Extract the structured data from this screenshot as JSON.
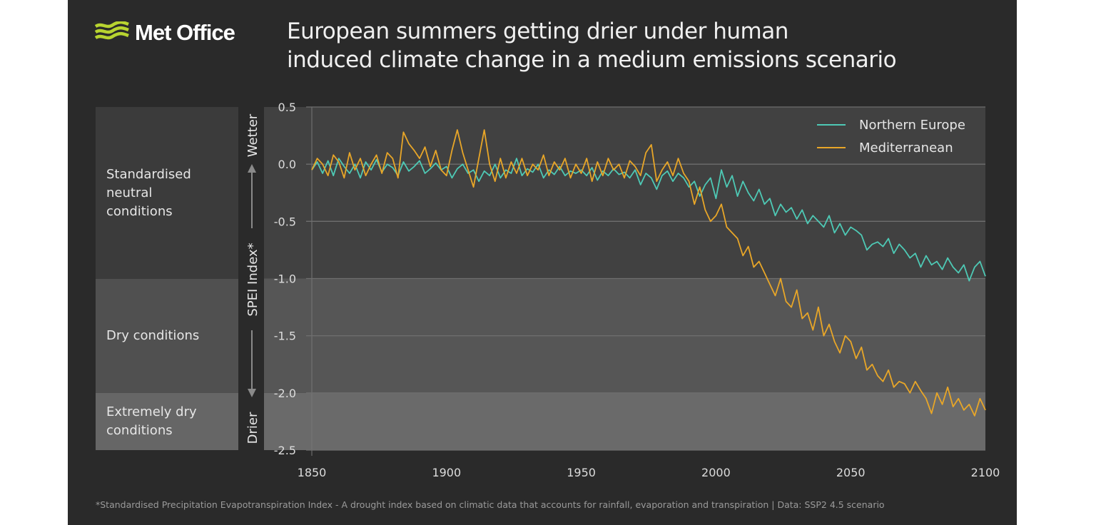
{
  "header": {
    "logo_text": "Met Office",
    "title_line1": "European summers getting drier under human",
    "title_line2": "induced climate change in a medium emissions scenario"
  },
  "bands": [
    {
      "label": "Standardised neutral conditions",
      "from": -1.0,
      "to": 0.5,
      "color": "#3b3b3b",
      "plot_color": "#414141"
    },
    {
      "label": "Dry conditions",
      "from": -2.0,
      "to": -1.0,
      "color": "#505050",
      "plot_color": "#565656"
    },
    {
      "label": "Extremely dry conditions",
      "from": -2.5,
      "to": -2.0,
      "color": "#666666",
      "plot_color": "#6a6a6a"
    }
  ],
  "axis_annotations": {
    "wetter": "Wetter",
    "drier": "Drier",
    "ylabel": "SPEI Index*"
  },
  "footnote": "*Standardised Precipitation Evapotranspiration Index - A drought index based on climatic data that accounts for rainfall, evaporation and transpiration  |  Data: SSP2 4.5 scenario",
  "chart_data": {
    "type": "line",
    "title": "European summers getting drier under human induced climate change in a medium emissions scenario",
    "xlabel": "",
    "ylabel": "SPEI Index*",
    "xlim": [
      1850,
      2100
    ],
    "ylim": [
      -2.5,
      0.5
    ],
    "xticks": [
      "1850",
      "1900",
      "1950",
      "2000",
      "2050",
      "2100"
    ],
    "yticks": [
      "0.5",
      "0.0",
      "-0.5",
      "-1.0",
      "-1.5",
      "-2.0",
      "-2.5"
    ],
    "grid": "horizontal",
    "legend": "top-right",
    "x_start": 1850,
    "x_step": 2,
    "series": [
      {
        "name": "Northern Europe",
        "color": "#4ec9b5",
        "values": [
          -0.05,
          0.02,
          -0.08,
          0.03,
          -0.1,
          0.05,
          -0.02,
          -0.08,
          0.0,
          -0.12,
          0.02,
          -0.05,
          0.04,
          -0.07,
          0.0,
          -0.03,
          -0.1,
          0.02,
          -0.06,
          -0.02,
          0.03,
          -0.08,
          -0.04,
          0.01,
          -0.05,
          -0.02,
          -0.12,
          -0.04,
          0.0,
          -0.08,
          -0.05,
          -0.15,
          -0.06,
          -0.1,
          0.0,
          -0.12,
          -0.05,
          -0.08,
          0.05,
          -0.1,
          -0.04,
          -0.07,
          0.0,
          -0.12,
          -0.05,
          -0.09,
          -0.02,
          -0.1,
          -0.06,
          -0.08,
          -0.05,
          -0.1,
          -0.03,
          -0.14,
          -0.06,
          -0.1,
          -0.04,
          -0.09,
          -0.07,
          -0.12,
          -0.05,
          -0.18,
          -0.08,
          -0.12,
          -0.22,
          -0.1,
          -0.06,
          -0.15,
          -0.08,
          -0.12,
          -0.2,
          -0.15,
          -0.28,
          -0.18,
          -0.12,
          -0.3,
          -0.05,
          -0.2,
          -0.1,
          -0.28,
          -0.15,
          -0.25,
          -0.32,
          -0.22,
          -0.35,
          -0.3,
          -0.45,
          -0.35,
          -0.42,
          -0.38,
          -0.48,
          -0.4,
          -0.52,
          -0.45,
          -0.5,
          -0.55,
          -0.45,
          -0.6,
          -0.52,
          -0.62,
          -0.55,
          -0.58,
          -0.62,
          -0.75,
          -0.7,
          -0.68,
          -0.72,
          -0.65,
          -0.78,
          -0.7,
          -0.75,
          -0.82,
          -0.78,
          -0.9,
          -0.8,
          -0.88,
          -0.85,
          -0.92,
          -0.82,
          -0.9,
          -0.95,
          -0.88,
          -1.02,
          -0.9,
          -0.85,
          -0.98
        ]
      },
      {
        "name": "Mediterranean",
        "color": "#e8a628",
        "values": [
          -0.05,
          0.05,
          0.0,
          -0.1,
          0.08,
          0.02,
          -0.12,
          0.1,
          -0.05,
          0.05,
          -0.1,
          0.0,
          0.08,
          -0.08,
          0.1,
          0.05,
          -0.12,
          0.28,
          0.18,
          0.12,
          0.05,
          0.15,
          -0.02,
          0.12,
          -0.05,
          -0.1,
          0.12,
          0.3,
          0.1,
          -0.05,
          -0.2,
          0.05,
          0.3,
          0.0,
          -0.15,
          0.05,
          -0.12,
          0.02,
          -0.08,
          0.05,
          -0.1,
          0.0,
          -0.05,
          0.08,
          -0.1,
          0.02,
          -0.05,
          0.05,
          -0.12,
          0.0,
          -0.08,
          0.05,
          -0.15,
          0.02,
          -0.1,
          0.05,
          -0.05,
          0.0,
          -0.12,
          0.03,
          -0.02,
          -0.1,
          0.1,
          0.17,
          -0.15,
          -0.05,
          0.02,
          -0.1,
          0.05,
          -0.08,
          -0.15,
          -0.35,
          -0.2,
          -0.4,
          -0.5,
          -0.45,
          -0.35,
          -0.55,
          -0.6,
          -0.65,
          -0.8,
          -0.72,
          -0.9,
          -0.85,
          -0.95,
          -1.05,
          -1.15,
          -1.0,
          -1.2,
          -1.25,
          -1.1,
          -1.35,
          -1.3,
          -1.45,
          -1.25,
          -1.5,
          -1.4,
          -1.55,
          -1.65,
          -1.5,
          -1.55,
          -1.7,
          -1.6,
          -1.8,
          -1.75,
          -1.85,
          -1.9,
          -1.8,
          -1.95,
          -1.9,
          -1.92,
          -2.0,
          -1.9,
          -1.98,
          -2.05,
          -2.18,
          -2.0,
          -2.1,
          -1.95,
          -2.12,
          -2.05,
          -2.15,
          -2.1,
          -2.2,
          -2.05,
          -2.15
        ]
      }
    ]
  },
  "colors": {
    "background": "#2a2a2a",
    "logo_accent": "#b8d430",
    "grid": "#6e6e6e",
    "text": "#e6e6e6"
  }
}
